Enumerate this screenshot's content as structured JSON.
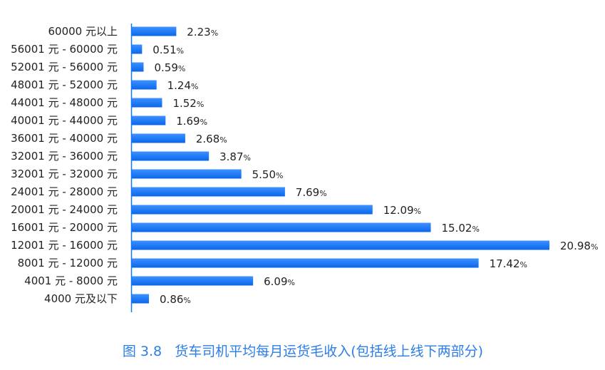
{
  "chart_data": {
    "type": "bar",
    "orientation": "horizontal",
    "title": "图 3.8   货车司机平均每月运货毛收入(包括线上线下两部分)",
    "categories": [
      "60000 元以上",
      "56001 元 - 60000 元",
      "52001 元 - 56000 元",
      "48001 元 - 52000 元",
      "44001 元 - 48000 元",
      "40001 元 - 44000 元",
      "36001 元 - 40000 元",
      "32001 元 - 36000 元",
      "32001 元 - 32000 元",
      "24001 元 - 28000 元",
      "20001 元 - 24000 元",
      "16001 元 - 20000 元",
      "12001 元 - 16000 元",
      "8001 元 - 12000 元",
      "4001 元 - 8000 元",
      "4000 元及以下"
    ],
    "values": [
      2.23,
      0.51,
      0.59,
      1.24,
      1.52,
      1.69,
      2.68,
      3.87,
      5.5,
      7.69,
      12.09,
      15.02,
      20.98,
      17.42,
      6.09,
      0.86
    ],
    "value_labels": [
      "2.23",
      "0.51",
      "0.59",
      "1.24",
      "1.52",
      "1.69",
      "2.68",
      "3.87",
      "5.50",
      "7.69",
      "12.09",
      "15.02",
      "20.98",
      "17.42",
      "6.09",
      "0.86"
    ],
    "unit": "%",
    "xlim": [
      0,
      21
    ],
    "grid": false,
    "bar_color": "#1677f5",
    "title_color": "#2b7de9"
  }
}
